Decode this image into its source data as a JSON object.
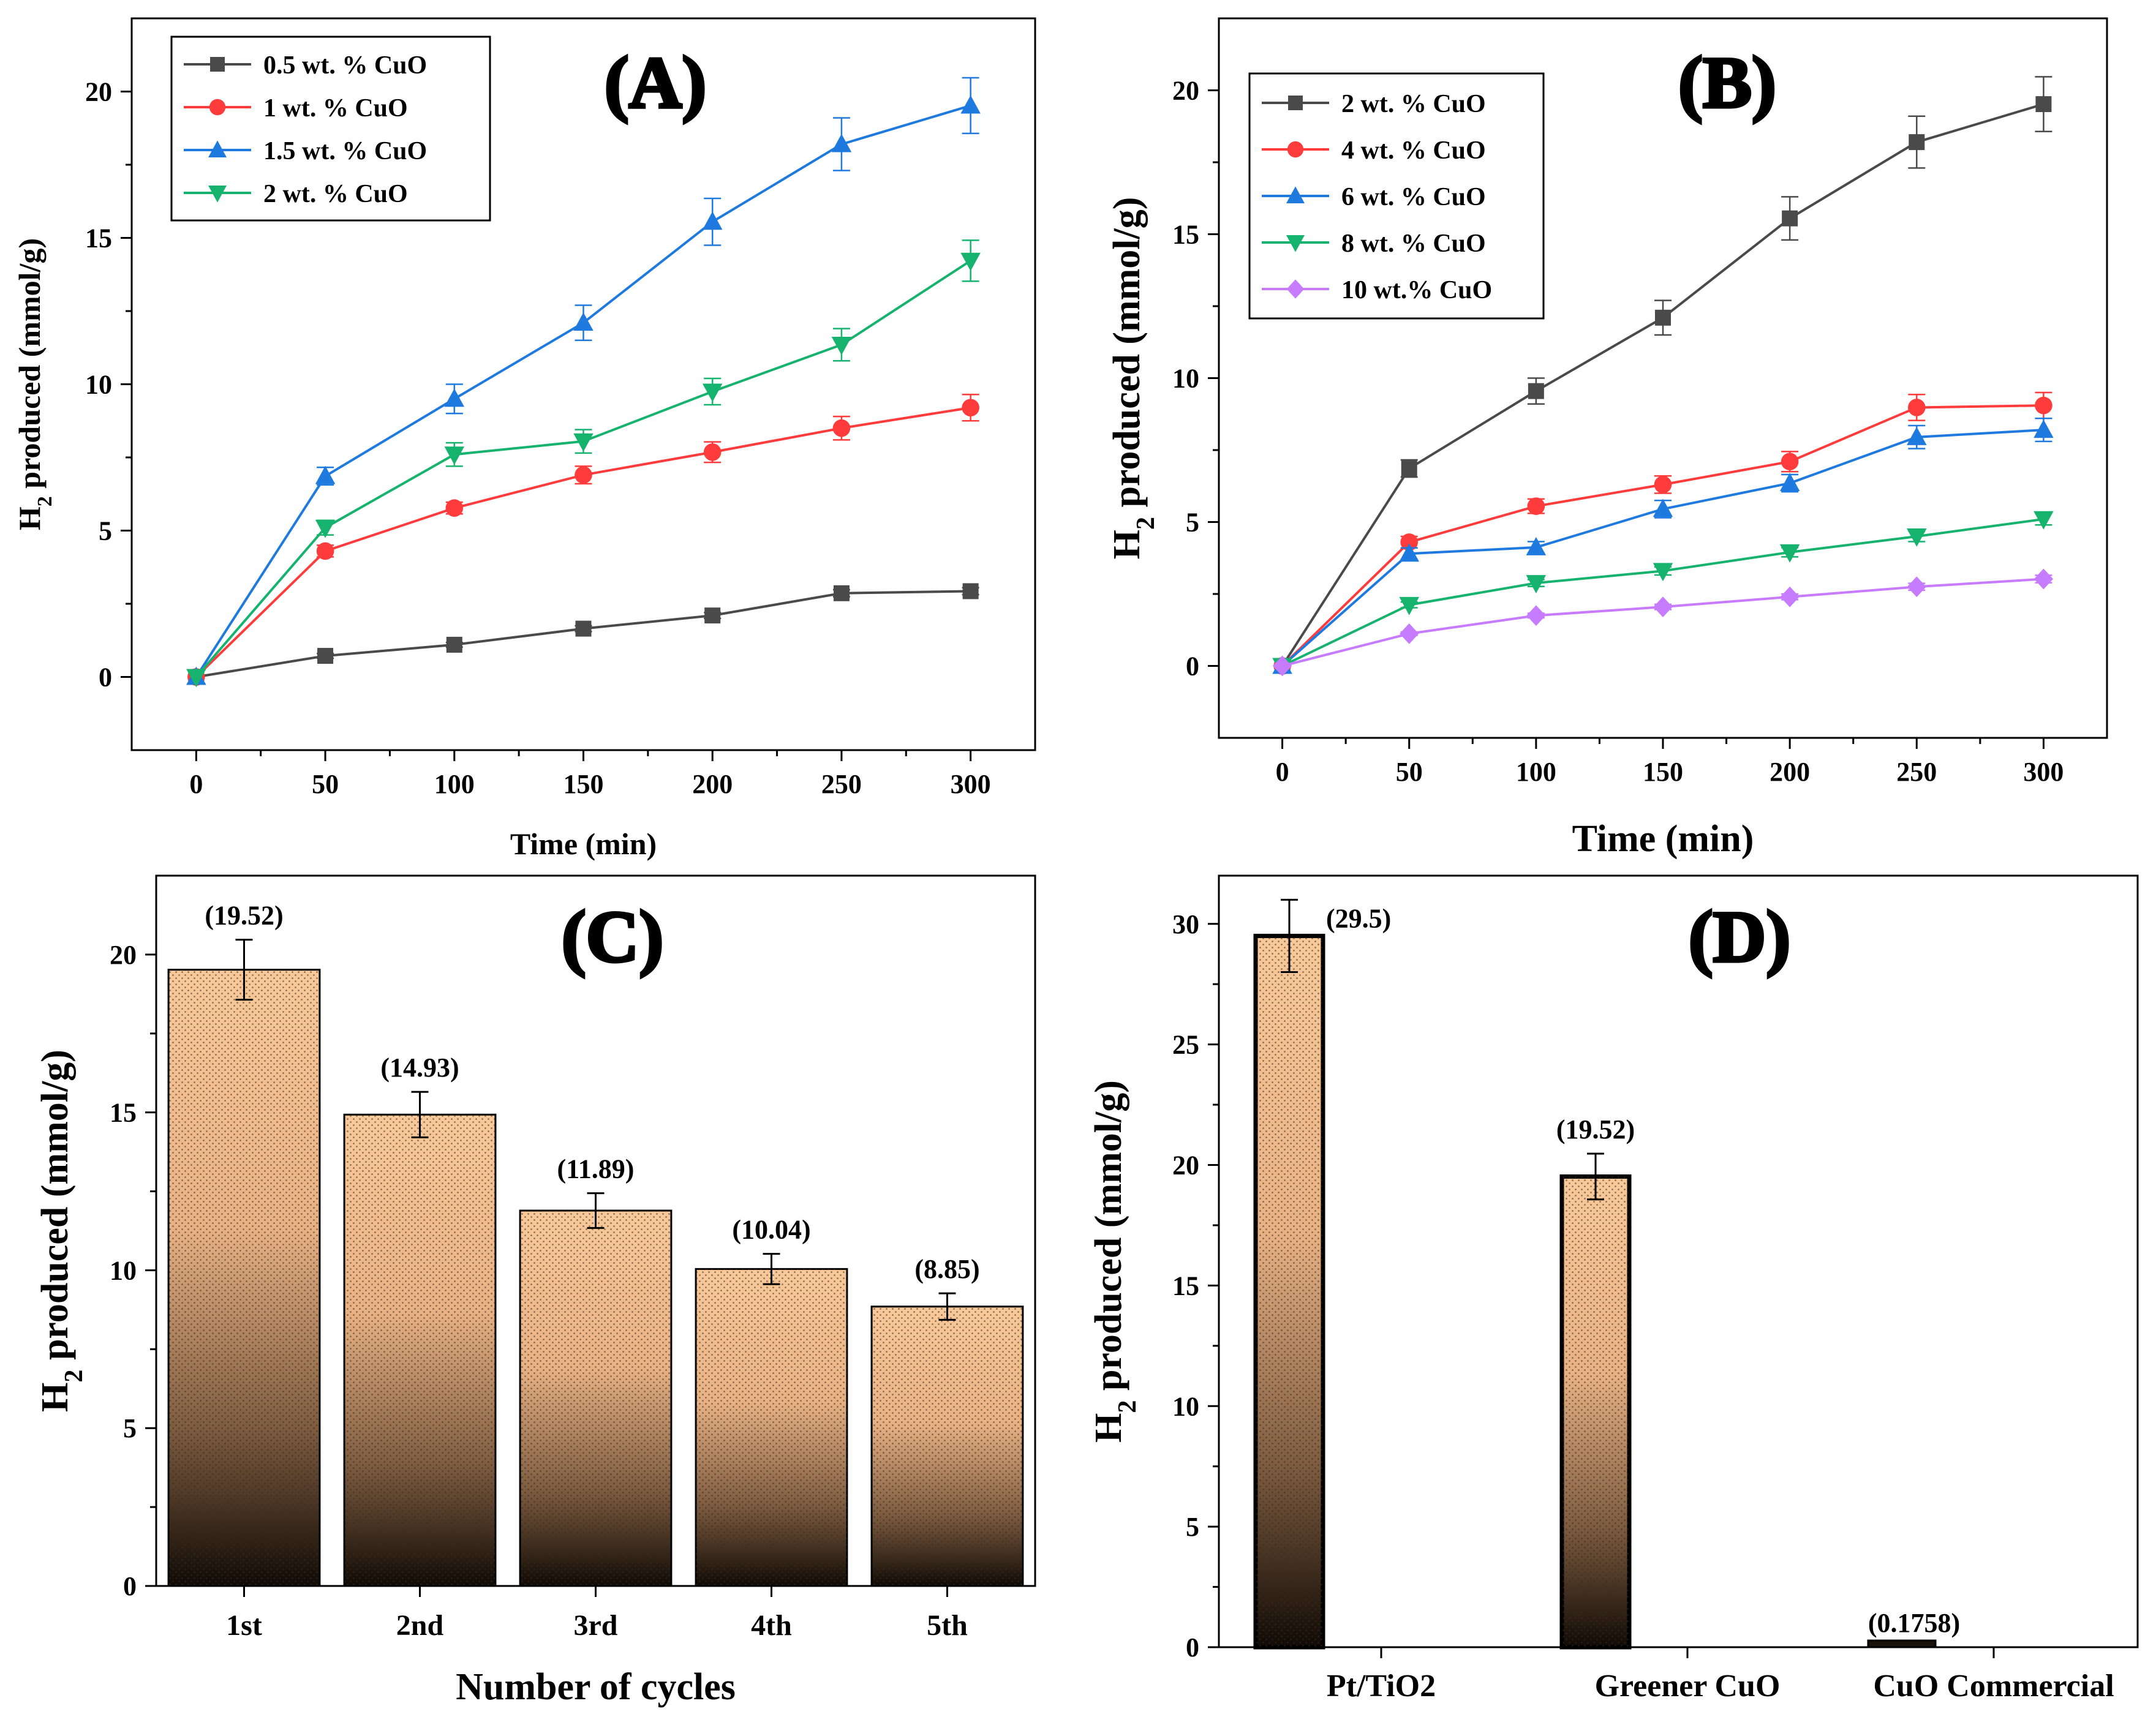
{
  "chart_data": [
    {
      "id": "A",
      "type": "line",
      "panel_label": "(A)",
      "xlabel": "Time (min)",
      "ylabel_main": "H",
      "ylabel_sub": "2",
      "ylabel_rest": " produced (mmol/g)",
      "x": [
        0,
        50,
        100,
        150,
        200,
        250,
        300
      ],
      "xticks": [
        "0",
        "50",
        "100",
        "150",
        "200",
        "250",
        "300"
      ],
      "yticks": [
        "0",
        "5",
        "10",
        "15",
        "20"
      ],
      "xlim": [
        -25,
        325
      ],
      "ylim": [
        -2.5,
        22.5
      ],
      "grid": false,
      "legend_position": "top-left",
      "series": [
        {
          "name": "0.5 wt. % CuO",
          "color": "#4a4a4a",
          "marker": "square",
          "values": [
            0,
            0.72,
            1.1,
            1.65,
            2.1,
            2.86,
            2.93
          ],
          "errors": [
            0,
            0.08,
            0.08,
            0.1,
            0.1,
            0.12,
            0.12
          ]
        },
        {
          "name": "1 wt. % CuO",
          "color": "#ff3b3b",
          "marker": "circle",
          "values": [
            0,
            4.3,
            5.77,
            6.9,
            7.68,
            8.5,
            9.2
          ],
          "errors": [
            0,
            0.2,
            0.2,
            0.3,
            0.35,
            0.4,
            0.45
          ]
        },
        {
          "name": "1.5 wt. % CuO",
          "color": "#1f7ae0",
          "marker": "triangle-up",
          "values": [
            0,
            6.86,
            9.5,
            12.1,
            15.55,
            18.2,
            19.52
          ],
          "errors": [
            0,
            0.3,
            0.5,
            0.6,
            0.8,
            0.9,
            0.95
          ]
        },
        {
          "name": "2 wt. % CuO",
          "color": "#16b36e",
          "marker": "triangle-down",
          "values": [
            0,
            5.1,
            7.6,
            8.05,
            9.75,
            11.35,
            14.22
          ],
          "errors": [
            0,
            0.25,
            0.4,
            0.4,
            0.45,
            0.55,
            0.7
          ]
        }
      ]
    },
    {
      "id": "B",
      "type": "line",
      "panel_label": "(B)",
      "xlabel": "Time (min)",
      "ylabel_main": "H",
      "ylabel_sub": "2",
      "ylabel_rest": " produced (mmol/g)",
      "x": [
        0,
        50,
        100,
        150,
        200,
        250,
        300
      ],
      "xticks": [
        "0",
        "50",
        "100",
        "150",
        "200",
        "250",
        "300"
      ],
      "yticks": [
        "0",
        "5",
        "10",
        "15",
        "20"
      ],
      "xlim": [
        -25,
        325
      ],
      "ylim": [
        -2.5,
        22.5
      ],
      "grid": false,
      "legend_position": "top-left",
      "series": [
        {
          "name": "2 wt. % CuO",
          "color": "#4a4a4a",
          "marker": "square",
          "values": [
            0,
            6.86,
            9.55,
            12.1,
            15.55,
            18.2,
            19.52
          ],
          "errors": [
            0,
            0.3,
            0.45,
            0.6,
            0.75,
            0.9,
            0.95
          ]
        },
        {
          "name": "4 wt. % CuO",
          "color": "#ff3b3b",
          "marker": "circle",
          "values": [
            0,
            4.3,
            5.55,
            6.3,
            7.1,
            8.98,
            9.05
          ],
          "errors": [
            0,
            0.2,
            0.25,
            0.3,
            0.35,
            0.45,
            0.45
          ]
        },
        {
          "name": "6 wt. % CuO",
          "color": "#1f7ae0",
          "marker": "triangle-up",
          "values": [
            0,
            3.9,
            4.12,
            5.45,
            6.35,
            7.95,
            8.2
          ],
          "errors": [
            0,
            0.2,
            0.2,
            0.3,
            0.3,
            0.4,
            0.4
          ]
        },
        {
          "name": "8 wt. % CuO",
          "color": "#16b36e",
          "marker": "triangle-down",
          "values": [
            0,
            2.12,
            2.88,
            3.3,
            3.95,
            4.5,
            5.1
          ],
          "errors": [
            0,
            0.1,
            0.12,
            0.14,
            0.16,
            0.18,
            0.2
          ]
        },
        {
          "name": "10 wt.% CuO",
          "color": "#c77cff",
          "marker": "diamond",
          "values": [
            0,
            1.12,
            1.75,
            2.05,
            2.4,
            2.75,
            3.02
          ],
          "errors": [
            0,
            0.06,
            0.08,
            0.09,
            0.1,
            0.12,
            0.13
          ]
        }
      ]
    },
    {
      "id": "C",
      "type": "bar",
      "panel_label": "(C)",
      "xlabel": "Number of cycles",
      "ylabel_main": "H",
      "ylabel_sub": "2",
      "ylabel_rest": " produced (mmol/g)",
      "categories": [
        "1st",
        "2nd",
        "3rd",
        "4th",
        "5th"
      ],
      "values": [
        19.52,
        14.93,
        11.89,
        10.04,
        8.85
      ],
      "errors": [
        0.95,
        0.72,
        0.55,
        0.48,
        0.42
      ],
      "data_labels": [
        "(19.52)",
        "(14.93)",
        "(11.89)",
        "(10.04)",
        "(8.85)"
      ],
      "yticks": [
        "0",
        "5",
        "10",
        "15",
        "20"
      ],
      "ylim": [
        0,
        22.5
      ],
      "grid": false
    },
    {
      "id": "D",
      "type": "bar",
      "panel_label": "(D)",
      "xlabel": "",
      "ylabel_main": "H",
      "ylabel_sub": "2",
      "ylabel_rest": " produced (mmol/g)",
      "categories": [
        "Pt/TiO2",
        "Greener CuO",
        "CuO Commercial"
      ],
      "values": [
        29.5,
        19.52,
        0.1758
      ],
      "errors": [
        1.5,
        0.95,
        0
      ],
      "data_labels": [
        "(29.5)",
        "(19.52)",
        "(0.1758)"
      ],
      "yticks": [
        "0",
        "5",
        "10",
        "15",
        "20",
        "25",
        "30"
      ],
      "ylim": [
        0,
        32
      ],
      "grid": false
    }
  ]
}
